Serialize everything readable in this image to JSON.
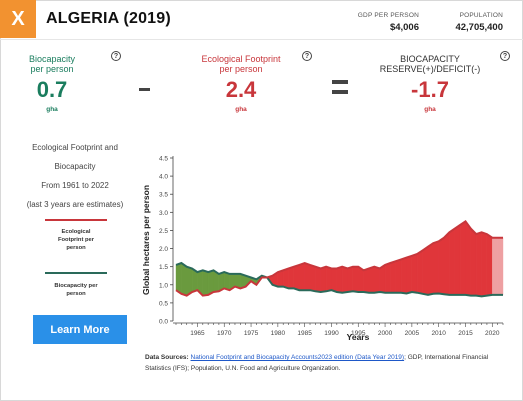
{
  "header": {
    "close_label": "X",
    "country": "ALGERIA (2019)",
    "gdp_label": "GDP PER PERSON",
    "gdp_value": "$4,006",
    "population_label": "POPULATION",
    "population_value": "42,705,400"
  },
  "metrics": {
    "biocapacity": {
      "label_line1": "Biocapacity",
      "label_line2": "per person",
      "value": "0.7",
      "unit": "gha"
    },
    "footprint": {
      "label_line1": "Ecological Footprint",
      "label_line2": "per person",
      "value": "2.4",
      "unit": "gha"
    },
    "reserve": {
      "label_line1": "BIOCAPACITY",
      "label_line2": "RESERVE(+)/DEFICIT(-)",
      "value": "-1.7",
      "unit": "gha"
    },
    "help_symbol": "?",
    "minus_symbol": "-",
    "equals_symbol": "="
  },
  "sidebar": {
    "desc_lines": [
      "Ecological Footprint and",
      "Biocapacity",
      "From 1961 to 2022",
      "(last 3 years are estimates)"
    ],
    "legend_footprint_lines": [
      "Ecological",
      "Footprint per",
      "person"
    ],
    "legend_biocapacity_lines": [
      "Biocapacity per",
      "person"
    ],
    "learn_more": "Learn More"
  },
  "colors": {
    "footprint": "#c8363b",
    "biocapacity": "#2a6a5a",
    "deficit_fill": "#e0363a",
    "reserve_fill": "#6a9a3e",
    "accent": "#f29230",
    "button": "#2a90e8"
  },
  "chart_data": {
    "type": "area",
    "ylabel": "Global hectares per person",
    "xlabel": "Years",
    "ylim": [
      0,
      4.5
    ],
    "xlim": [
      1961,
      2022
    ],
    "estimate_from_year": 2020,
    "y_ticks": [
      "0.0",
      "0.5",
      "1.0",
      "1.5",
      "2.0",
      "2.5",
      "3.0",
      "3.5",
      "4.0",
      "4.5"
    ],
    "x_ticks": [
      "1965",
      "1970",
      "1975",
      "1980",
      "1985",
      "1990",
      "1995",
      "2000",
      "2005",
      "2010",
      "2015",
      "2020"
    ],
    "x": [
      1961,
      1962,
      1963,
      1964,
      1965,
      1966,
      1967,
      1968,
      1969,
      1970,
      1971,
      1972,
      1973,
      1974,
      1975,
      1976,
      1977,
      1978,
      1979,
      1980,
      1981,
      1982,
      1983,
      1984,
      1985,
      1986,
      1987,
      1988,
      1989,
      1990,
      1991,
      1992,
      1993,
      1994,
      1995,
      1996,
      1997,
      1998,
      1999,
      2000,
      2001,
      2002,
      2003,
      2004,
      2005,
      2006,
      2007,
      2008,
      2009,
      2010,
      2011,
      2012,
      2013,
      2014,
      2015,
      2016,
      2017,
      2018,
      2019,
      2020,
      2021,
      2022
    ],
    "series": [
      {
        "name": "Ecological Footprint per person",
        "values": [
          0.85,
          0.75,
          0.7,
          0.8,
          0.85,
          0.7,
          0.72,
          0.8,
          0.82,
          0.9,
          0.85,
          0.95,
          0.9,
          0.95,
          1.1,
          1.0,
          1.2,
          1.2,
          1.25,
          1.35,
          1.4,
          1.45,
          1.5,
          1.55,
          1.6,
          1.55,
          1.5,
          1.45,
          1.5,
          1.45,
          1.45,
          1.5,
          1.45,
          1.5,
          1.5,
          1.4,
          1.45,
          1.5,
          1.45,
          1.55,
          1.6,
          1.65,
          1.7,
          1.75,
          1.8,
          1.85,
          1.95,
          2.05,
          2.15,
          2.2,
          2.3,
          2.45,
          2.55,
          2.65,
          2.75,
          2.55,
          2.4,
          2.45,
          2.4,
          2.3,
          2.3,
          2.3
        ]
      },
      {
        "name": "Biocapacity per person",
        "values": [
          1.55,
          1.6,
          1.5,
          1.45,
          1.35,
          1.4,
          1.35,
          1.4,
          1.3,
          1.35,
          1.3,
          1.3,
          1.3,
          1.25,
          1.2,
          1.15,
          1.25,
          1.2,
          1.0,
          0.95,
          0.95,
          0.9,
          0.9,
          0.85,
          0.85,
          0.85,
          0.82,
          0.8,
          0.82,
          0.85,
          0.8,
          0.78,
          0.8,
          0.82,
          0.8,
          0.8,
          0.78,
          0.78,
          0.8,
          0.78,
          0.78,
          0.78,
          0.78,
          0.76,
          0.8,
          0.78,
          0.75,
          0.72,
          0.75,
          0.76,
          0.74,
          0.72,
          0.72,
          0.72,
          0.72,
          0.7,
          0.7,
          0.68,
          0.7,
          0.72,
          0.72,
          0.72
        ]
      }
    ]
  },
  "sources": {
    "label": "Data Sources:",
    "link_text": "National Footprint and Biocapacity Accounts2023 edition (Data Year 2019)",
    "rest": "; GDP, International Financial Statistics (IFS); Population, U.N. Food and Agriculture Organization."
  }
}
